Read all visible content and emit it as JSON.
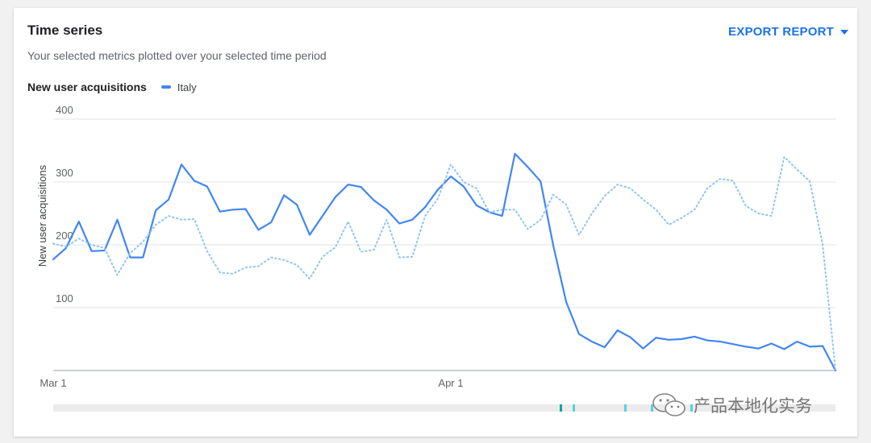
{
  "card": {
    "title": "Time series",
    "subtitle": "Your selected metrics plotted over your selected time period",
    "export_label": "EXPORT REPORT",
    "metric_label": "New user acquisitions"
  },
  "colors": {
    "series": "#4285f4",
    "comparison": "#90c4f5",
    "accent": "#1a73e8"
  },
  "chart_data": {
    "type": "line",
    "ylabel": "New user acquisitions",
    "xlabel": "",
    "ylim": [
      0,
      400
    ],
    "yticks": [
      100,
      200,
      300,
      400
    ],
    "ytick_labels": [
      "100",
      "200",
      "300",
      "400"
    ],
    "xtick_labels": [
      {
        "label": "Mar 1",
        "day": 1
      },
      {
        "label": "Apr 1",
        "day": 32
      }
    ],
    "grid": true,
    "series": [
      {
        "name": "Italy",
        "style": "solid",
        "x": [
          1,
          2,
          3,
          4,
          5,
          6,
          7,
          8,
          9,
          10,
          11,
          12,
          13,
          14,
          15,
          16,
          17,
          18,
          19,
          20,
          21,
          22,
          23,
          24,
          25,
          26,
          27,
          28,
          29,
          30,
          31,
          32,
          33,
          34,
          35,
          36,
          37,
          38,
          39,
          40,
          41,
          42,
          43,
          44,
          45,
          46,
          47,
          48,
          49,
          50,
          51,
          52,
          53,
          54,
          55,
          56,
          57,
          58,
          59,
          60,
          61,
          62
        ],
        "values": [
          177,
          195,
          237,
          190,
          191,
          240,
          180,
          180,
          255,
          272,
          328,
          302,
          293,
          253,
          256,
          257,
          224,
          236,
          279,
          264,
          216,
          246,
          276,
          296,
          292,
          271,
          256,
          234,
          240,
          260,
          288,
          309,
          293,
          263,
          252,
          246,
          345,
          324,
          301,
          198,
          109,
          58,
          46,
          37,
          64,
          53,
          35,
          52,
          49,
          50,
          54,
          48,
          46,
          42,
          38,
          35,
          43,
          34,
          46,
          38,
          39,
          0
        ]
      },
      {
        "name": "",
        "style": "dotted",
        "x": [
          1,
          2,
          3,
          4,
          5,
          6,
          7,
          8,
          9,
          10,
          11,
          12,
          13,
          14,
          15,
          16,
          17,
          18,
          19,
          20,
          21,
          22,
          23,
          24,
          25,
          26,
          27,
          28,
          29,
          30,
          31,
          32,
          33,
          34,
          35,
          36,
          37,
          38,
          39,
          40,
          41,
          42,
          43,
          44,
          45,
          46,
          47,
          48,
          49,
          50,
          51,
          52,
          53,
          54,
          55,
          56,
          57,
          58,
          59,
          60,
          61,
          62
        ],
        "values": [
          202,
          197,
          210,
          200,
          195,
          152,
          187,
          205,
          232,
          246,
          240,
          241,
          190,
          156,
          154,
          164,
          166,
          180,
          176,
          168,
          146,
          181,
          196,
          237,
          189,
          192,
          240,
          180,
          181,
          246,
          274,
          328,
          300,
          290,
          252,
          256,
          256,
          225,
          240,
          280,
          264,
          216,
          250,
          278,
          296,
          290,
          272,
          256,
          232,
          243,
          256,
          290,
          305,
          302,
          262,
          250,
          246,
          340,
          320,
          301,
          200,
          0
        ]
      }
    ]
  }
}
